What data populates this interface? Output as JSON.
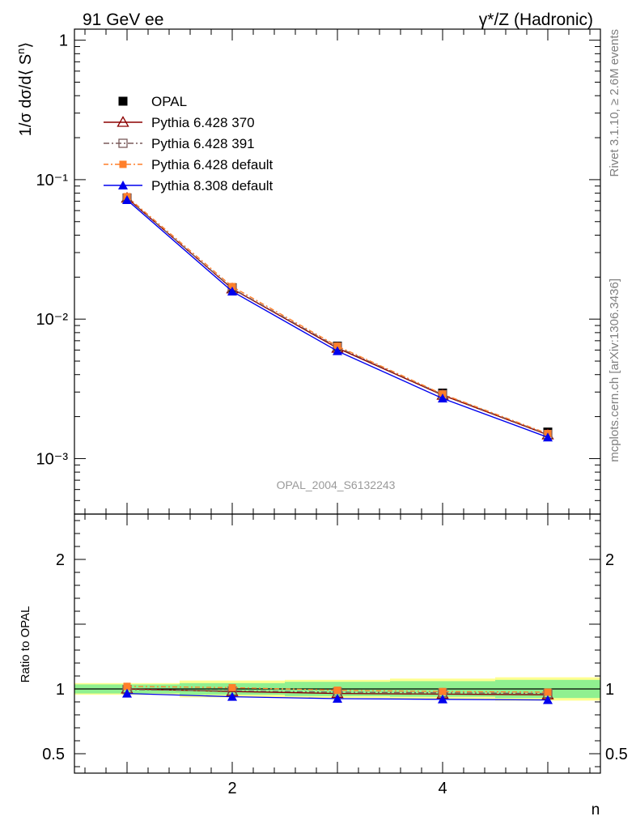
{
  "header": {
    "left_label": "91 GeV ee",
    "right_label": "γ*/Z (Hadronic)"
  },
  "side_text": {
    "rivet": "Rivet 3.1.10, ≥ 2.6M events",
    "mcplots": "mcplots.cern.ch [arXiv:1306.3436]"
  },
  "watermark": "OPAL_2004_S6132243",
  "colors": {
    "data": "#000000",
    "pythia6_370": "#8b0000",
    "pythia6_391": "#7a5a5a",
    "pythia6_default": "#ff7f2a",
    "pythia8_default": "#0000ee",
    "band_inner": "#90f090",
    "band_outer": "#ffff90"
  },
  "chart_data": [
    {
      "type": "line",
      "panel": "main",
      "ylabel": "1/σ dσ/d⟨ S^n⟩",
      "xlabel": "",
      "yscale": "log",
      "xlim": [
        0.5,
        5.5
      ],
      "ylim": [
        0.0004,
        1.2
      ],
      "y_ticks": [
        {
          "value": 0.001,
          "label": "10⁻³"
        },
        {
          "value": 0.01,
          "label": "10⁻²"
        },
        {
          "value": 0.1,
          "label": "10⁻¹"
        },
        {
          "value": 1,
          "label": "1"
        }
      ],
      "legend_position": "top-left",
      "x": [
        1,
        2,
        3,
        4,
        5
      ],
      "series": [
        {
          "name": "OPAL",
          "values": [
            0.074,
            0.0168,
            0.0064,
            0.00295,
            0.00155
          ],
          "marker": "square-filled",
          "line": "none"
        },
        {
          "name": "Pythia 6.428 370",
          "values": [
            0.0738,
            0.0165,
            0.0062,
            0.00285,
            0.00148
          ],
          "marker": "triangle-open",
          "line": "solid"
        },
        {
          "name": "Pythia 6.428 391",
          "values": [
            0.0736,
            0.0166,
            0.0063,
            0.00288,
            0.00149
          ],
          "marker": "square-open",
          "line": "dashdot"
        },
        {
          "name": "Pythia 6.428 default",
          "values": [
            0.0755,
            0.0171,
            0.0064,
            0.0029,
            0.00151
          ],
          "marker": "square-filled-small",
          "line": "dashdot"
        },
        {
          "name": "Pythia 8.308 default",
          "values": [
            0.0715,
            0.0158,
            0.0059,
            0.0027,
            0.00142
          ],
          "marker": "triangle-filled",
          "line": "solid"
        }
      ]
    },
    {
      "type": "line",
      "panel": "ratio",
      "ylabel": "Ratio to OPAL",
      "xlabel": "n",
      "xlim": [
        0.5,
        5.5
      ],
      "ylim": [
        0.35,
        2.35
      ],
      "y_ticks": [
        {
          "value": 0.5,
          "label": "0.5"
        },
        {
          "value": 1,
          "label": "1"
        },
        {
          "value": 2,
          "label": "2"
        }
      ],
      "x_ticks": [
        {
          "value": 2,
          "label": "2"
        },
        {
          "value": 4,
          "label": "4"
        }
      ],
      "x": [
        1,
        2,
        3,
        4,
        5
      ],
      "band_bins": [
        [
          0.5,
          1.5
        ],
        [
          1.5,
          2.5
        ],
        [
          2.5,
          3.5
        ],
        [
          3.5,
          4.5
        ],
        [
          4.5,
          5.5
        ]
      ],
      "band_inner": [
        0.035,
        0.045,
        0.055,
        0.06,
        0.07
      ],
      "band_outer": [
        0.045,
        0.065,
        0.07,
        0.08,
        0.09
      ],
      "series": [
        {
          "name": "Pythia 6.428 370",
          "values": [
            1.0,
            0.98,
            0.965,
            0.96,
            0.955
          ]
        },
        {
          "name": "Pythia 6.428 391",
          "values": [
            0.995,
            0.985,
            0.975,
            0.97,
            0.965
          ]
        },
        {
          "name": "Pythia 6.428 default",
          "values": [
            1.02,
            1.01,
            0.99,
            0.98,
            0.975
          ]
        },
        {
          "name": "Pythia 8.308 default",
          "values": [
            0.965,
            0.94,
            0.925,
            0.92,
            0.915
          ]
        }
      ]
    }
  ]
}
